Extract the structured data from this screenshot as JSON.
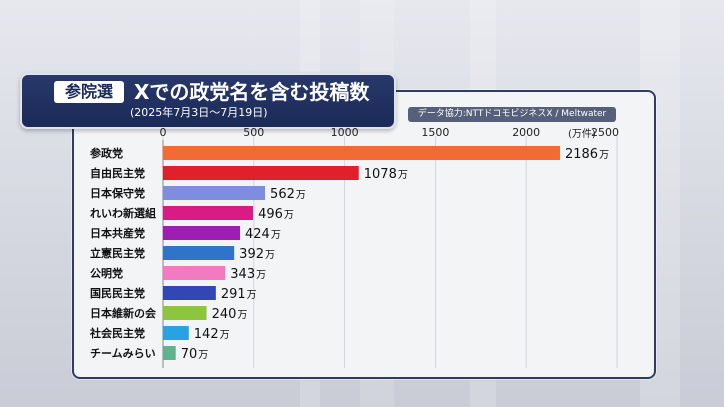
{
  "title": {
    "tag": "参院選",
    "main": "Xでの政党名を含む投稿数",
    "period": "(2025年7月3日〜7月19日)"
  },
  "source": "データ協力:NTTドコモビジネスX / Meltwater",
  "chart_data": {
    "type": "bar",
    "orientation": "horizontal",
    "title": "Xでの政党名を含む投稿数",
    "subtitle": "(2025年7月3日〜7月19日)",
    "unit": "(万件)",
    "value_suffix": "万",
    "xlim": [
      0,
      2500
    ],
    "xticks": [
      0,
      500,
      1000,
      1500,
      2000,
      2500
    ],
    "grid": true,
    "categories": [
      "参政党",
      "自由民主党",
      "日本保守党",
      "れいわ新選組",
      "日本共産党",
      "立憲民主党",
      "公明党",
      "国民民主党",
      "日本維新の会",
      "社会民主党",
      "チームみらい"
    ],
    "values": [
      2186,
      1078,
      562,
      496,
      424,
      392,
      343,
      291,
      240,
      142,
      70
    ],
    "colors": [
      "#f26a35",
      "#e0202a",
      "#7f8de0",
      "#d81b85",
      "#9b1fb0",
      "#2f74c8",
      "#f27ac0",
      "#3346b5",
      "#8cc63f",
      "#28a3df",
      "#5fb38f"
    ]
  }
}
